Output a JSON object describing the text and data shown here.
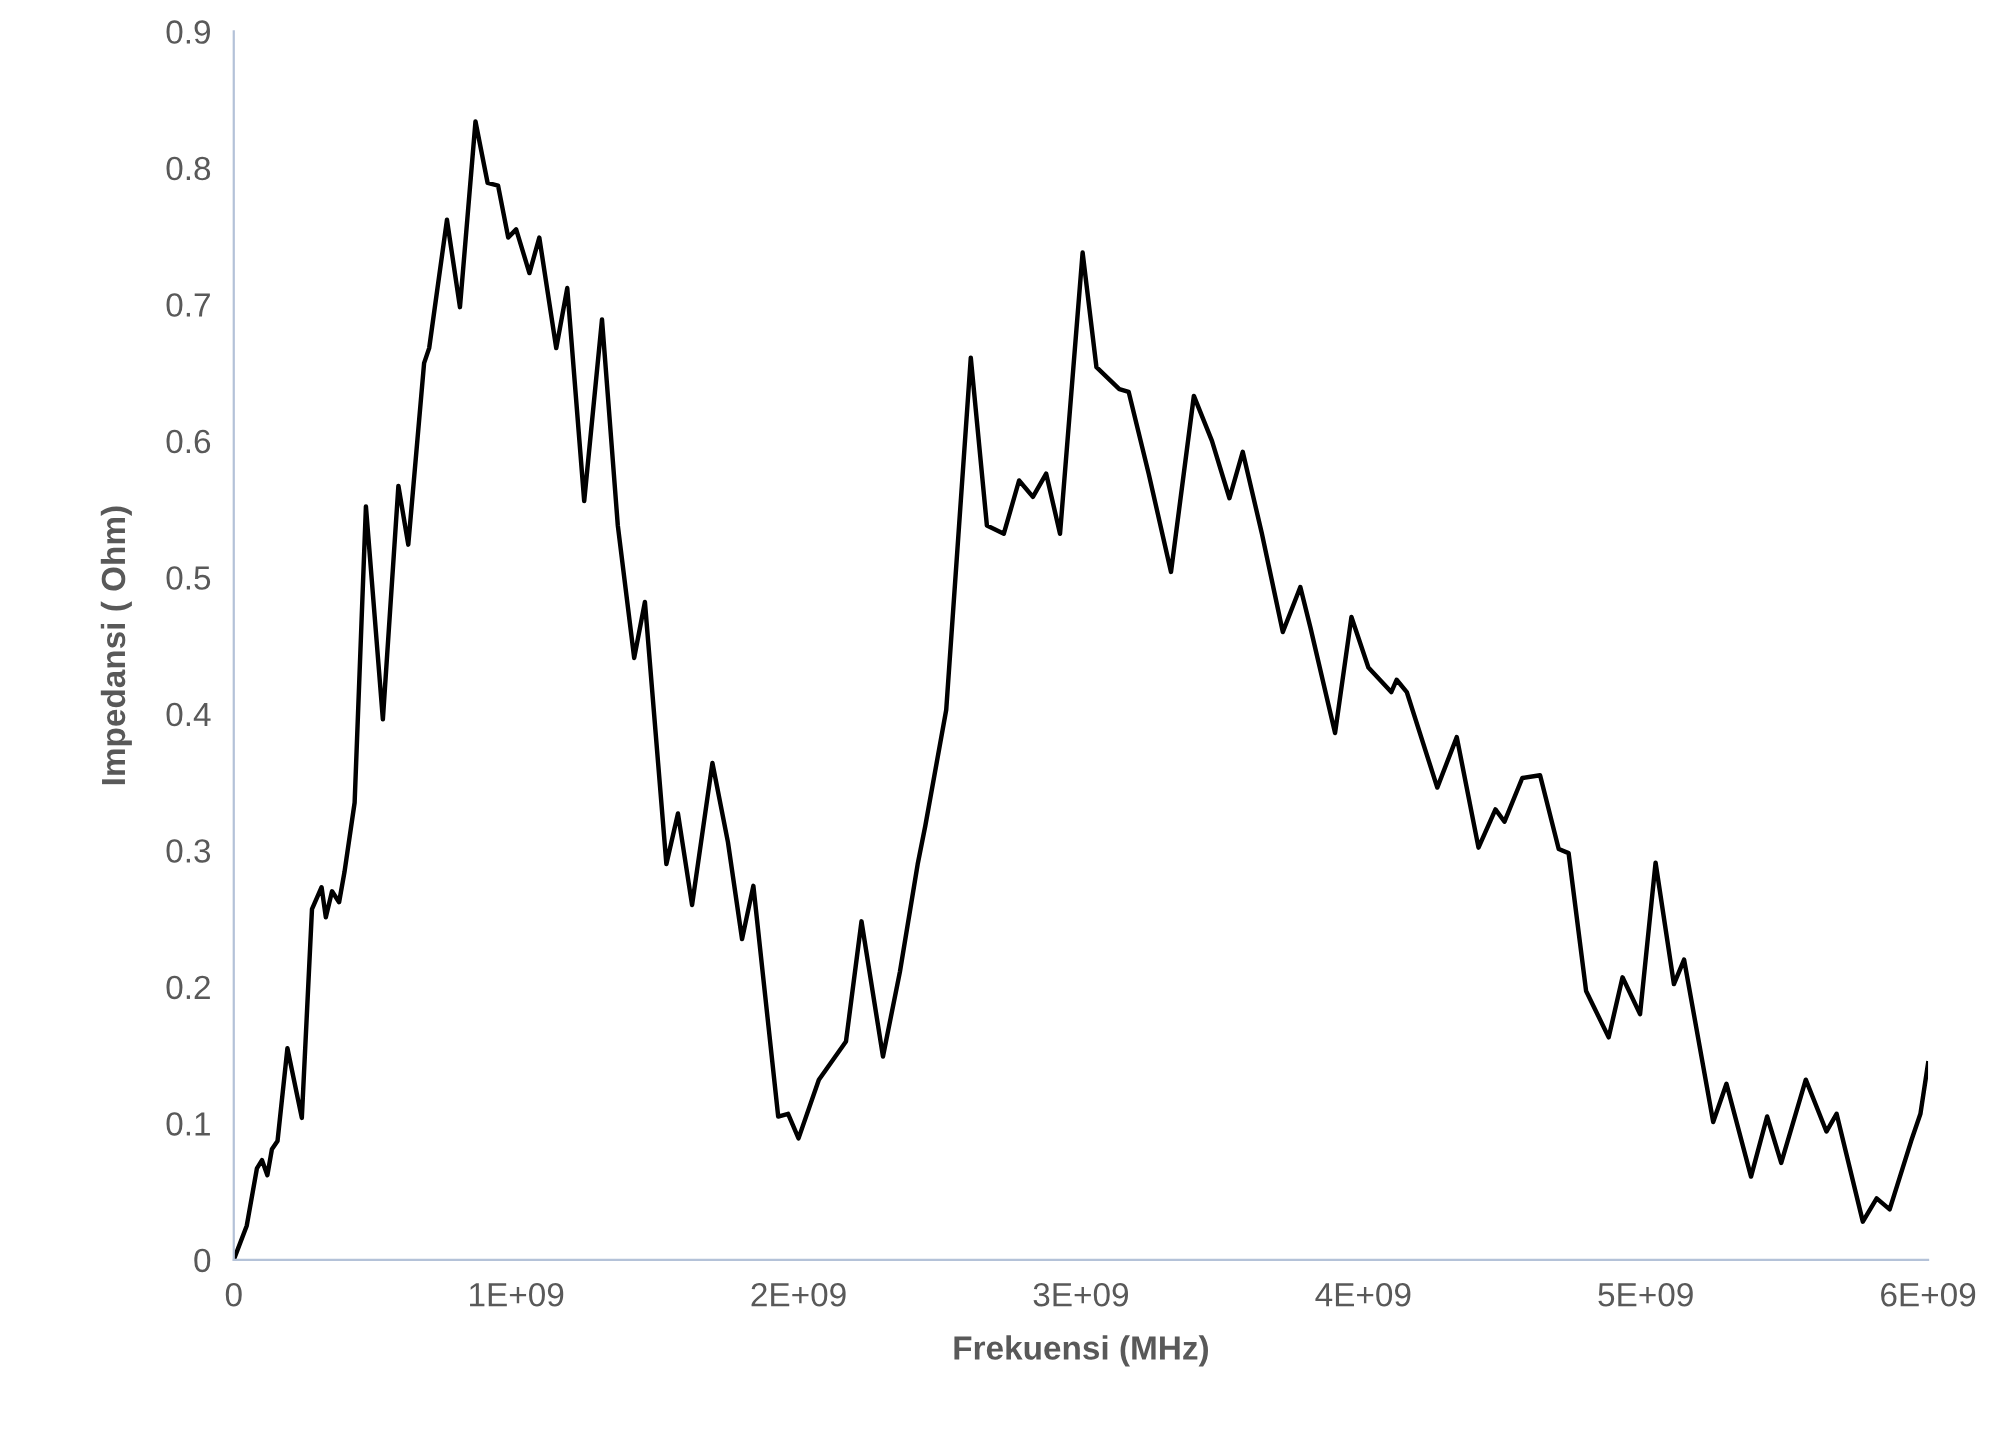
{
  "chart_data": {
    "type": "line",
    "xlabel": "Frekuensi (MHz)",
    "ylabel": "Impedansi ( Ohm)",
    "xlim": [
      0,
      6000000000.0
    ],
    "ylim": [
      0,
      0.9
    ],
    "xticks": [
      0,
      {
        "value": 1000000000.0,
        "label": "1E+09"
      },
      {
        "value": 2000000000.0,
        "label": "2E+09"
      },
      {
        "value": 3000000000.0,
        "label": "3E+09"
      },
      {
        "value": 4000000000.0,
        "label": "4E+09"
      },
      {
        "value": 5000000000.0,
        "label": "5E+09"
      },
      {
        "value": 6000000000.0,
        "label": "6E+09"
      }
    ],
    "yticks": [
      0,
      0.1,
      0.2,
      0.3,
      0.4,
      0.5,
      0.6,
      0.7,
      0.8,
      0.9
    ],
    "grid": false,
    "marker": "none",
    "line_style": "solid",
    "series": [
      {
        "color": "#000000",
        "x": [
          0,
          46000000.0,
          82000000.0,
          100000000.0,
          119000000.0,
          135000000.0,
          155000000.0,
          190000000.0,
          241000000.0,
          277000000.0,
          311000000.0,
          326000000.0,
          348000000.0,
          373000000.0,
          392000000.0,
          428000000.0,
          468000000.0,
          528000000.0,
          583000000.0,
          618000000.0,
          674000000.0,
          692000000.0,
          755000000.0,
          801000000.0,
          856000000.0,
          899000000.0,
          936000000.0,
          972000000.0,
          1000000000.0,
          1047000000.0,
          1082000000.0,
          1142000000.0,
          1181000000.0,
          1241000000.0,
          1304000000.0,
          1360000000.0,
          1418000000.0,
          1456000000.0,
          1532000000.0,
          1573000000.0,
          1623000000.0,
          1695000000.0,
          1750000000.0,
          1800000000.0,
          1840000000.0,
          1928000000.0,
          1963000000.0,
          2000000000.0,
          2072000000.0,
          2168000000.0,
          2223000000.0,
          2299000000.0,
          2359000000.0,
          2422000000.0,
          2449000000.0,
          2523000000.0,
          2610000000.0,
          2667000000.0,
          2727000000.0,
          2781000000.0,
          2830000000.0,
          2877000000.0,
          2926000000.0,
          3006000000.0,
          3055000000.0,
          3136000000.0,
          3169000000.0,
          3240000000.0,
          3319000000.0,
          3400000000.0,
          3464000000.0,
          3526000000.0,
          3573000000.0,
          3641000000.0,
          3715000000.0,
          3777000000.0,
          3813000000.0,
          3900000000.0,
          3958000000.0,
          4018000000.0,
          4099000000.0,
          4118000000.0,
          4154000000.0,
          4262000000.0,
          4331000000.0,
          4408000000.0,
          4468000000.0,
          4500000000.0,
          4563000000.0,
          4626000000.0,
          4692000000.0,
          4727000000.0,
          4789000000.0,
          4869000000.0,
          4918000000.0,
          4980000000.0,
          5035000000.0,
          5100000000.0,
          5136000000.0,
          5239000000.0,
          5286000000.0,
          5373000000.0,
          5430000000.0,
          5480000000.0,
          5567000000.0,
          5640000000.0,
          5676000000.0,
          5769000000.0,
          5818000000.0,
          5864000000.0,
          5940000000.0,
          5973000000.0,
          6000000000.0
        ],
        "values": [
          0,
          0.025,
          0.067,
          0.073,
          0.062,
          0.081,
          0.087,
          0.155,
          0.104,
          0.257,
          0.273,
          0.251,
          0.27,
          0.262,
          0.284,
          0.335,
          0.552,
          0.396,
          0.567,
          0.524,
          0.657,
          0.668,
          0.762,
          0.698,
          0.834,
          0.789,
          0.787,
          0.749,
          0.755,
          0.723,
          0.749,
          0.668,
          0.712,
          0.556,
          0.689,
          0.538,
          0.441,
          0.482,
          0.29,
          0.327,
          0.26,
          0.364,
          0.306,
          0.235,
          0.274,
          0.105,
          0.107,
          0.089,
          0.132,
          0.16,
          0.248,
          0.149,
          0.211,
          0.29,
          0.318,
          0.403,
          0.661,
          0.538,
          0.532,
          0.571,
          0.559,
          0.576,
          0.532,
          0.738,
          0.654,
          0.638,
          0.636,
          0.576,
          0.504,
          0.633,
          0.6,
          0.558,
          0.592,
          0.532,
          0.46,
          0.493,
          0.463,
          0.386,
          0.471,
          0.434,
          0.416,
          0.425,
          0.416,
          0.346,
          0.383,
          0.302,
          0.33,
          0.321,
          0.353,
          0.355,
          0.301,
          0.298,
          0.197,
          0.163,
          0.207,
          0.18,
          0.291,
          0.202,
          0.22,
          0.101,
          0.129,
          0.061,
          0.105,
          0.071,
          0.132,
          0.094,
          0.107,
          0.028,
          0.045,
          0.037,
          0.087,
          0.107,
          0.144
        ]
      }
    ]
  }
}
